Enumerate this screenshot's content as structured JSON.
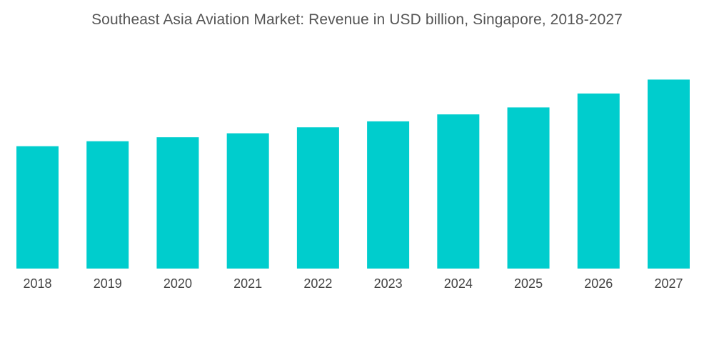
{
  "chart_data": {
    "type": "bar",
    "title": "Southeast Asia Aviation Market: Revenue in USD billion, Singapore, 2018-2027",
    "xlabel": "",
    "ylabel": "",
    "categories": [
      "2018",
      "2019",
      "2020",
      "2021",
      "2022",
      "2023",
      "2024",
      "2025",
      "2026",
      "2027"
    ],
    "values": [
      12.3,
      12.8,
      13.2,
      13.6,
      14.2,
      14.8,
      15.5,
      16.2,
      17.6,
      19.0
    ],
    "ylim": [
      0,
      27
    ],
    "grid": false,
    "legend": "none",
    "bar_color": "#00CDCD"
  }
}
